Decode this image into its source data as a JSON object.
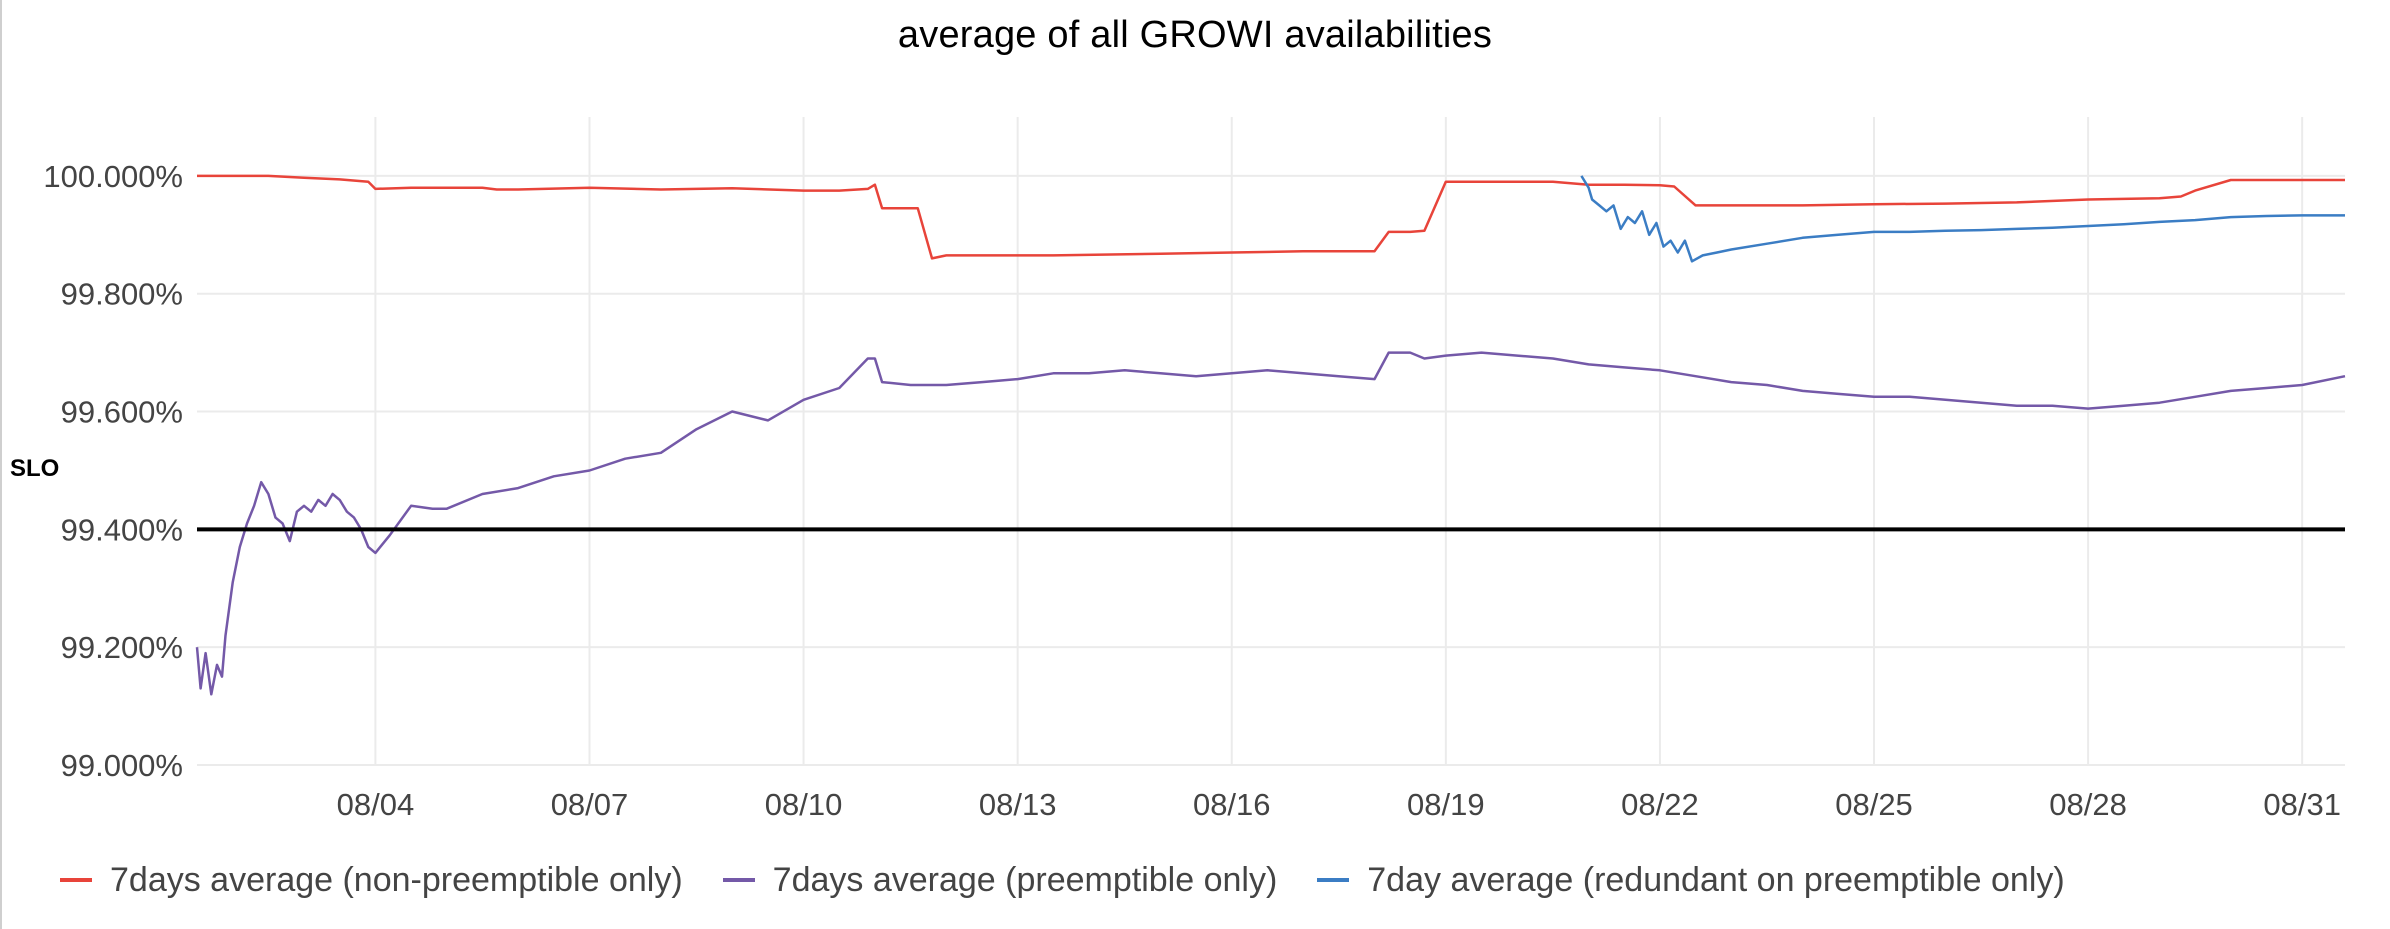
{
  "chart_data": {
    "type": "line",
    "title": "average of all GROWI availabilities",
    "xlabel": "",
    "ylabel": "",
    "ylim": [
      99.0,
      100.1
    ],
    "xlim": [
      "08/01",
      "08/31"
    ],
    "grid": true,
    "legend_position": "bottom",
    "y_ticks": [
      "99.000%",
      "99.200%",
      "99.400%",
      "99.600%",
      "99.800%",
      "100.000%"
    ],
    "y_tick_values": [
      99.0,
      99.2,
      99.4,
      99.6,
      99.8,
      100.0
    ],
    "x_ticks": [
      "08/04",
      "08/07",
      "08/10",
      "08/13",
      "08/16",
      "08/19",
      "08/22",
      "08/25",
      "08/28",
      "08/31"
    ],
    "x_tick_values": [
      4,
      7,
      10,
      13,
      16,
      19,
      22,
      25,
      28,
      31
    ],
    "annotations": [
      {
        "text": "SLO",
        "y": 99.4
      }
    ],
    "series": [
      {
        "name": "7days average (non-preemptible only)",
        "color": "#e8443a",
        "x": [
          1.5,
          2.5,
          3.0,
          3.5,
          3.9,
          4.0,
          4.5,
          5.0,
          5.5,
          5.7,
          6.0,
          7.0,
          8.0,
          9.0,
          10.0,
          10.5,
          10.9,
          11.0,
          11.1,
          11.6,
          11.8,
          12.0,
          12.5,
          13.5,
          15.0,
          16.0,
          17.0,
          18.0,
          18.2,
          18.5,
          18.7,
          19.0,
          19.5,
          20.0,
          20.5,
          21.0,
          21.5,
          22.0,
          22.2,
          22.5,
          23.0,
          24.0,
          25.0,
          26.0,
          27.0,
          28.0,
          29.0,
          29.3,
          29.5,
          30.0,
          31.0,
          31.6
        ],
        "values": [
          100.0,
          100.0,
          99.997,
          99.994,
          99.99,
          99.978,
          99.98,
          99.98,
          99.98,
          99.977,
          99.977,
          99.98,
          99.977,
          99.979,
          99.975,
          99.975,
          99.978,
          99.985,
          99.945,
          99.945,
          99.86,
          99.865,
          99.865,
          99.865,
          99.868,
          99.87,
          99.872,
          99.872,
          99.905,
          99.905,
          99.907,
          99.99,
          99.99,
          99.99,
          99.99,
          99.985,
          99.985,
          99.984,
          99.982,
          99.95,
          99.95,
          99.95,
          99.952,
          99.953,
          99.955,
          99.96,
          99.962,
          99.965,
          99.975,
          99.993,
          99.993,
          99.993
        ]
      },
      {
        "name": "7days average (preemptible only)",
        "color": "#7459a8",
        "x": [
          1.5,
          1.55,
          1.62,
          1.7,
          1.78,
          1.85,
          1.9,
          2.0,
          2.1,
          2.2,
          2.3,
          2.4,
          2.5,
          2.6,
          2.7,
          2.8,
          2.9,
          3.0,
          3.1,
          3.2,
          3.3,
          3.4,
          3.5,
          3.6,
          3.7,
          3.8,
          3.9,
          4.0,
          4.2,
          4.5,
          4.8,
          5.0,
          5.5,
          6.0,
          6.5,
          7.0,
          7.5,
          8.0,
          8.5,
          9.0,
          9.5,
          10.0,
          10.5,
          10.9,
          11.0,
          11.1,
          11.5,
          12.0,
          12.5,
          13.0,
          13.5,
          14.0,
          14.5,
          15.0,
          15.5,
          16.0,
          16.5,
          17.0,
          17.5,
          18.0,
          18.2,
          18.5,
          18.7,
          19.0,
          19.5,
          20.0,
          20.5,
          21.0,
          21.5,
          22.0,
          22.5,
          23.0,
          23.5,
          24.0,
          24.5,
          25.0,
          25.5,
          26.0,
          26.5,
          27.0,
          27.5,
          28.0,
          28.5,
          29.0,
          29.5,
          30.0,
          30.5,
          31.0,
          31.6
        ],
        "values": [
          99.2,
          99.13,
          99.19,
          99.12,
          99.17,
          99.15,
          99.22,
          99.31,
          99.37,
          99.41,
          99.44,
          99.48,
          99.46,
          99.42,
          99.41,
          99.38,
          99.43,
          99.44,
          99.43,
          99.45,
          99.44,
          99.46,
          99.45,
          99.43,
          99.42,
          99.4,
          99.37,
          99.36,
          99.39,
          99.44,
          99.435,
          99.435,
          99.46,
          99.47,
          99.49,
          99.5,
          99.52,
          99.53,
          99.57,
          99.6,
          99.585,
          99.62,
          99.64,
          99.69,
          99.69,
          99.65,
          99.645,
          99.645,
          99.65,
          99.655,
          99.665,
          99.665,
          99.67,
          99.665,
          99.66,
          99.665,
          99.67,
          99.665,
          99.66,
          99.655,
          99.7,
          99.7,
          99.69,
          99.695,
          99.7,
          99.695,
          99.69,
          99.68,
          99.675,
          99.67,
          99.66,
          99.65,
          99.645,
          99.635,
          99.63,
          99.625,
          99.625,
          99.62,
          99.615,
          99.61,
          99.61,
          99.605,
          99.61,
          99.615,
          99.625,
          99.635,
          99.64,
          99.645,
          99.66
        ]
      },
      {
        "name": "7day average (redundant on preemptible only)",
        "color": "#3b7dc4",
        "x": [
          20.9,
          21.0,
          21.05,
          21.15,
          21.25,
          21.35,
          21.45,
          21.55,
          21.65,
          21.75,
          21.85,
          21.95,
          22.05,
          22.15,
          22.25,
          22.35,
          22.45,
          22.6,
          22.8,
          23.0,
          23.5,
          24.0,
          24.5,
          25.0,
          25.5,
          26.0,
          26.5,
          27.0,
          27.5,
          28.0,
          28.5,
          29.0,
          29.5,
          30.0,
          30.5,
          31.0,
          31.6
        ],
        "values": [
          100.0,
          99.98,
          99.96,
          99.95,
          99.94,
          99.95,
          99.91,
          99.93,
          99.92,
          99.94,
          99.9,
          99.92,
          99.88,
          99.89,
          99.87,
          99.89,
          99.855,
          99.865,
          99.87,
          99.875,
          99.885,
          99.895,
          99.9,
          99.905,
          99.905,
          99.907,
          99.908,
          99.91,
          99.912,
          99.915,
          99.918,
          99.922,
          99.925,
          99.93,
          99.932,
          99.933,
          99.933
        ]
      },
      {
        "name": "",
        "color": "#000000",
        "x": [
          1.5,
          31.6
        ],
        "values": [
          99.4,
          99.4
        ]
      }
    ]
  },
  "legend": {
    "items": [
      {
        "label": "7days average (non-preemptible only)",
        "color": "#e8443a"
      },
      {
        "label": "7days average (preemptible only)",
        "color": "#7459a8"
      },
      {
        "label": "7day average (redundant on preemptible only)",
        "color": "#3b7dc4"
      }
    ]
  }
}
